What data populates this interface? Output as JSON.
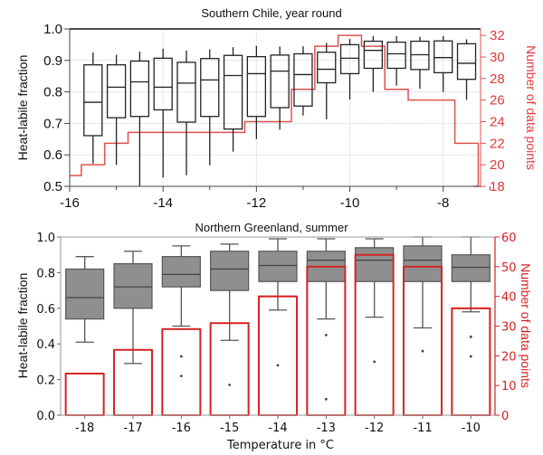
{
  "chart_data": [
    {
      "type": "box",
      "title": "Southern Chile, year round",
      "xlabel": "",
      "ylabel": "Heat-labile fraction",
      "y2label": "Number of data points",
      "xlim": [
        -16,
        -7.2
      ],
      "ylim": [
        0.5,
        1.0
      ],
      "y2lim": [
        18,
        32.6
      ],
      "xticks": [
        "-16",
        "-14",
        "-12",
        "-10",
        "-8"
      ],
      "xtick_values": [
        -16,
        -14,
        -12,
        -10,
        -8
      ],
      "yticks": [
        "0.5",
        "0.6",
        "0.7",
        "0.8",
        "0.9",
        "1.0"
      ],
      "ytick_values": [
        0.5,
        0.6,
        0.7,
        0.8,
        0.9,
        1.0
      ],
      "y2ticks": [
        "18",
        "20",
        "22",
        "24",
        "26",
        "28",
        "30",
        "32"
      ],
      "y2tick_values": [
        18,
        20,
        22,
        24,
        26,
        28,
        30,
        32
      ],
      "grid": true,
      "boxes": [
        {
          "x": -15.5,
          "low": 0.572,
          "q1": 0.661,
          "median": 0.767,
          "q3": 0.886,
          "high": 0.925
        },
        {
          "x": -15.0,
          "low": 0.568,
          "q1": 0.718,
          "median": 0.815,
          "q3": 0.886,
          "high": 0.918
        },
        {
          "x": -14.5,
          "low": 0.5,
          "q1": 0.722,
          "median": 0.832,
          "q3": 0.898,
          "high": 0.928
        },
        {
          "x": -14.0,
          "low": 0.528,
          "q1": 0.743,
          "median": 0.815,
          "q3": 0.907,
          "high": 0.937
        },
        {
          "x": -13.5,
          "low": 0.535,
          "q1": 0.704,
          "median": 0.828,
          "q3": 0.894,
          "high": 0.931
        },
        {
          "x": -13.0,
          "low": 0.567,
          "q1": 0.722,
          "median": 0.838,
          "q3": 0.906,
          "high": 0.935
        },
        {
          "x": -12.5,
          "low": 0.61,
          "q1": 0.682,
          "median": 0.852,
          "q3": 0.916,
          "high": 0.942
        },
        {
          "x": -12.0,
          "low": 0.65,
          "q1": 0.722,
          "median": 0.858,
          "q3": 0.912,
          "high": 0.946
        },
        {
          "x": -11.5,
          "low": 0.68,
          "q1": 0.75,
          "median": 0.866,
          "q3": 0.917,
          "high": 0.944
        },
        {
          "x": -11.0,
          "low": 0.725,
          "q1": 0.755,
          "median": 0.855,
          "q3": 0.921,
          "high": 0.945
        },
        {
          "x": -10.5,
          "low": 0.713,
          "q1": 0.829,
          "median": 0.872,
          "q3": 0.926,
          "high": 0.956
        },
        {
          "x": -10.0,
          "low": 0.776,
          "q1": 0.858,
          "median": 0.907,
          "q3": 0.95,
          "high": 0.968
        },
        {
          "x": -9.5,
          "low": 0.8,
          "q1": 0.875,
          "median": 0.932,
          "q3": 0.961,
          "high": 0.977
        },
        {
          "x": -9.0,
          "low": 0.82,
          "q1": 0.875,
          "median": 0.921,
          "q3": 0.958,
          "high": 0.977
        },
        {
          "x": -8.5,
          "low": 0.81,
          "q1": 0.871,
          "median": 0.918,
          "q3": 0.961,
          "high": 0.975
        },
        {
          "x": -8.0,
          "low": 0.8,
          "q1": 0.861,
          "median": 0.909,
          "q3": 0.962,
          "high": 0.977
        },
        {
          "x": -7.5,
          "low": 0.775,
          "q1": 0.84,
          "median": 0.891,
          "q3": 0.953,
          "high": 0.967
        }
      ],
      "count_series": {
        "name": "Number of data points",
        "type": "step",
        "color": "#e05050",
        "x": [
          -16,
          -15.75,
          -15.25,
          -14.75,
          -12.25,
          -11.25,
          -10.75,
          -10.25,
          -9.75,
          -9.25,
          -8.75,
          -7.75,
          -7.25
        ],
        "values": [
          19,
          20,
          22,
          23,
          24,
          27,
          31,
          32,
          31,
          27,
          26,
          22,
          18
        ]
      }
    },
    {
      "type": "box",
      "title": "Northern Greenland, summer",
      "xlabel": "Temperature in °C",
      "ylabel": "Heat-labile fraction",
      "y2label": "Number of data points",
      "categories": [
        "-18",
        "-17",
        "-16",
        "-15",
        "-14",
        "-13",
        "-12",
        "-11",
        "-10"
      ],
      "ylim": [
        0.0,
        1.0
      ],
      "y2lim": [
        0,
        60
      ],
      "yticks": [
        "0.0",
        "0.2",
        "0.4",
        "0.6",
        "0.8",
        "1.0"
      ],
      "ytick_values": [
        0,
        0.2,
        0.4,
        0.6,
        0.8,
        1.0
      ],
      "y2ticks": [
        "0",
        "10",
        "20",
        "30",
        "40",
        "50",
        "60"
      ],
      "y2tick_values": [
        0,
        10,
        20,
        30,
        40,
        50,
        60
      ],
      "grid": false,
      "boxes": [
        {
          "low": 0.41,
          "q1": 0.54,
          "median": 0.66,
          "q3": 0.82,
          "high": 0.89,
          "outliers": []
        },
        {
          "low": 0.29,
          "q1": 0.6,
          "median": 0.72,
          "q3": 0.85,
          "high": 0.92,
          "outliers": []
        },
        {
          "low": 0.5,
          "q1": 0.72,
          "median": 0.79,
          "q3": 0.89,
          "high": 0.95,
          "outliers": [
            0.33,
            0.22
          ]
        },
        {
          "low": 0.42,
          "q1": 0.7,
          "median": 0.82,
          "q3": 0.92,
          "high": 0.96,
          "outliers": [
            0.17
          ]
        },
        {
          "low": 0.59,
          "q1": 0.75,
          "median": 0.84,
          "q3": 0.92,
          "high": 0.99,
          "outliers": [
            0.28
          ]
        },
        {
          "low": 0.54,
          "q1": 0.75,
          "median": 0.87,
          "q3": 0.92,
          "high": 0.99,
          "outliers": [
            0.45,
            0.09
          ]
        },
        {
          "low": 0.55,
          "q1": 0.75,
          "median": 0.87,
          "q3": 0.94,
          "high": 0.99,
          "outliers": [
            0.3
          ]
        },
        {
          "low": 0.49,
          "q1": 0.75,
          "median": 0.87,
          "q3": 0.95,
          "high": 1.0,
          "outliers": [
            0.36
          ]
        },
        {
          "low": 0.58,
          "q1": 0.75,
          "median": 0.83,
          "q3": 0.9,
          "high": 1.0,
          "outliers": [
            0.44,
            0.33
          ]
        }
      ],
      "count_series": {
        "name": "Number of data points",
        "type": "bar",
        "color": "#d62020",
        "values": [
          14,
          22,
          29,
          31,
          40,
          50,
          54,
          50,
          36
        ]
      }
    }
  ]
}
